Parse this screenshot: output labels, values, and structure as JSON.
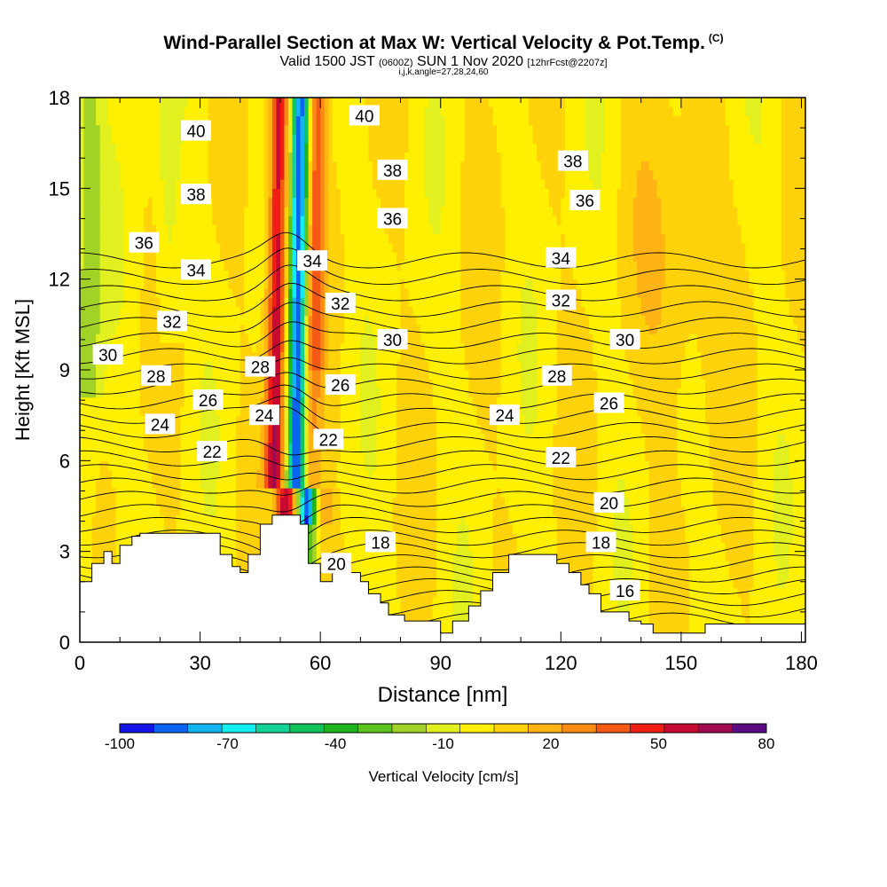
{
  "header": {
    "title": "Wind-Parallel Section at Max W: Vertical Velocity & Pot.Temp.",
    "copyright": "(C)",
    "valid_a": "Valid 1500 JST",
    "valid_utc": "(0600Z)",
    "valid_b": "SUN 1 Nov 2020",
    "forecast": "[12hrFcst@2207z]",
    "params": "i,j,k,angle=27,28,24,60"
  },
  "chart_data": {
    "type": "heatmap",
    "xlabel": "Distance [nm]",
    "ylabel": "Height [Kft MSL]",
    "xlim": [
      0,
      181
    ],
    "ylim": [
      0,
      18
    ],
    "xticks": [
      0,
      30,
      60,
      90,
      120,
      150,
      180
    ],
    "yticks": [
      0,
      3,
      6,
      9,
      12,
      15,
      18
    ],
    "colorbar": {
      "label": "Vertical Velocity [cm/s]",
      "ticks": [
        -100,
        -70,
        -40,
        -10,
        20,
        50,
        80
      ],
      "bins": [
        -100,
        -90,
        -80,
        -70,
        -60,
        -50,
        -40,
        -30,
        -20,
        -10,
        0,
        10,
        20,
        30,
        40,
        50,
        60,
        70,
        80
      ],
      "colors": [
        "#1414e6",
        "#0a64f0",
        "#10b4f0",
        "#12eef0",
        "#12d296",
        "#10c35a",
        "#1eb41e",
        "#5ac31e",
        "#a0d228",
        "#e1f01e",
        "#fff000",
        "#ffd20a",
        "#ffb414",
        "#fa8c14",
        "#f55a14",
        "#f01e14",
        "#c80a32",
        "#a00a50",
        "#5a0a82"
      ]
    },
    "theta_contours": [
      16,
      18,
      20,
      22,
      24,
      26,
      28,
      30,
      32,
      34,
      36,
      38,
      40
    ],
    "contour_labels": [
      {
        "text": "40",
        "x": 29,
        "y": 16.9
      },
      {
        "text": "40",
        "x": 71,
        "y": 17.4
      },
      {
        "text": "38",
        "x": 29,
        "y": 14.8
      },
      {
        "text": "38",
        "x": 78,
        "y": 15.6
      },
      {
        "text": "38",
        "x": 123,
        "y": 15.9
      },
      {
        "text": "36",
        "x": 16,
        "y": 13.2
      },
      {
        "text": "36",
        "x": 78,
        "y": 14.0
      },
      {
        "text": "36",
        "x": 126,
        "y": 14.6
      },
      {
        "text": "34",
        "x": 29,
        "y": 12.3
      },
      {
        "text": "34",
        "x": 58,
        "y": 12.6
      },
      {
        "text": "34",
        "x": 120,
        "y": 12.7
      },
      {
        "text": "32",
        "x": 23,
        "y": 10.6
      },
      {
        "text": "32",
        "x": 65,
        "y": 11.2
      },
      {
        "text": "32",
        "x": 120,
        "y": 11.3
      },
      {
        "text": "30",
        "x": 7,
        "y": 9.5
      },
      {
        "text": "30",
        "x": 78,
        "y": 10.0
      },
      {
        "text": "30",
        "x": 136,
        "y": 10.0
      },
      {
        "text": "28",
        "x": 19,
        "y": 8.8
      },
      {
        "text": "28",
        "x": 45,
        "y": 9.1
      },
      {
        "text": "28",
        "x": 119,
        "y": 8.8
      },
      {
        "text": "26",
        "x": 32,
        "y": 8.0
      },
      {
        "text": "26",
        "x": 65,
        "y": 8.5
      },
      {
        "text": "26",
        "x": 132,
        "y": 7.9
      },
      {
        "text": "24",
        "x": 20,
        "y": 7.2
      },
      {
        "text": "24",
        "x": 46,
        "y": 7.5
      },
      {
        "text": "24",
        "x": 106,
        "y": 7.5
      },
      {
        "text": "22",
        "x": 33,
        "y": 6.3
      },
      {
        "text": "22",
        "x": 62,
        "y": 6.7
      },
      {
        "text": "22",
        "x": 120,
        "y": 6.1
      },
      {
        "text": "20",
        "x": 132,
        "y": 4.6
      },
      {
        "text": "20",
        "x": 64,
        "y": 2.6
      },
      {
        "text": "18",
        "x": 75,
        "y": 3.3
      },
      {
        "text": "18",
        "x": 130,
        "y": 3.3
      },
      {
        "text": "16",
        "x": 136,
        "y": 1.7
      }
    ],
    "terrain": [
      [
        0,
        2
      ],
      [
        3,
        2
      ],
      [
        3,
        2.6
      ],
      [
        6,
        2.6
      ],
      [
        6,
        3.0
      ],
      [
        8,
        3.0
      ],
      [
        8,
        2.6
      ],
      [
        10,
        2.6
      ],
      [
        10,
        3.2
      ],
      [
        13,
        3.2
      ],
      [
        13,
        3.5
      ],
      [
        15,
        3.5
      ],
      [
        15,
        3.6
      ],
      [
        35,
        3.6
      ],
      [
        35,
        2.9
      ],
      [
        38,
        2.9
      ],
      [
        38,
        2.5
      ],
      [
        40,
        2.5
      ],
      [
        40,
        2.3
      ],
      [
        42,
        2.3
      ],
      [
        42,
        2.9
      ],
      [
        45,
        2.9
      ],
      [
        45,
        3.9
      ],
      [
        48,
        3.9
      ],
      [
        48,
        4.2
      ],
      [
        55,
        4.2
      ],
      [
        55,
        3.9
      ],
      [
        57,
        3.9
      ],
      [
        57,
        2.6
      ],
      [
        60,
        2.6
      ],
      [
        60,
        2.0
      ],
      [
        63,
        2.0
      ],
      [
        63,
        2.3
      ],
      [
        70,
        2.3
      ],
      [
        70,
        2.0
      ],
      [
        72,
        2.0
      ],
      [
        72,
        1.6
      ],
      [
        75,
        1.6
      ],
      [
        75,
        1.3
      ],
      [
        77,
        1.3
      ],
      [
        77,
        0.9
      ],
      [
        81,
        0.9
      ],
      [
        81,
        0.7
      ],
      [
        85,
        0.7
      ],
      [
        85,
        0.7
      ],
      [
        90,
        0.7
      ],
      [
        90,
        0.3
      ],
      [
        93,
        0.3
      ],
      [
        93,
        0.7
      ],
      [
        97,
        0.7
      ],
      [
        97,
        1.2
      ],
      [
        100,
        1.2
      ],
      [
        100,
        1.7
      ],
      [
        103,
        1.7
      ],
      [
        103,
        2.3
      ],
      [
        107,
        2.3
      ],
      [
        107,
        2.9
      ],
      [
        119,
        2.9
      ],
      [
        119,
        2.6
      ],
      [
        122,
        2.6
      ],
      [
        122,
        2.3
      ],
      [
        125,
        2.3
      ],
      [
        125,
        1.9
      ],
      [
        127,
        1.9
      ],
      [
        127,
        1.6
      ],
      [
        130,
        1.6
      ],
      [
        130,
        1.0
      ],
      [
        137,
        1.0
      ],
      [
        137,
        0.7
      ],
      [
        140,
        0.7
      ],
      [
        140,
        0.6
      ],
      [
        143,
        0.6
      ],
      [
        143,
        0.3
      ],
      [
        156,
        0.3
      ],
      [
        156,
        0.6
      ],
      [
        181,
        0.6
      ],
      [
        181,
        0
      ],
      [
        0,
        0
      ]
    ]
  }
}
